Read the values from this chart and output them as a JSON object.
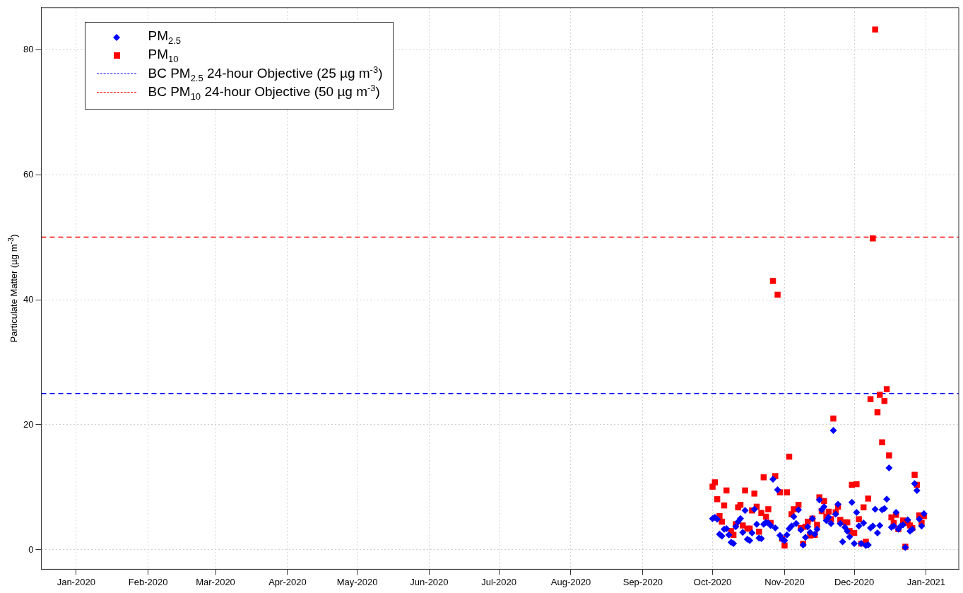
{
  "chart_data": {
    "type": "scatter",
    "ylabel": "Particulate Matter (µg m$^{-3}$)",
    "xlim": [
      "2019-12-17",
      "2021-01-15"
    ],
    "ylim": [
      -3.1,
      86.7
    ],
    "xticks": [
      {
        "value": "2020-01-01",
        "label": "Jan-2020"
      },
      {
        "value": "2020-02-01",
        "label": "Feb-2020"
      },
      {
        "value": "2020-03-01",
        "label": "Mar-2020"
      },
      {
        "value": "2020-04-01",
        "label": "Apr-2020"
      },
      {
        "value": "2020-05-01",
        "label": "May-2020"
      },
      {
        "value": "2020-06-01",
        "label": "Jun-2020"
      },
      {
        "value": "2020-07-01",
        "label": "Jul-2020"
      },
      {
        "value": "2020-08-01",
        "label": "Aug-2020"
      },
      {
        "value": "2020-09-01",
        "label": "Sep-2020"
      },
      {
        "value": "2020-10-01",
        "label": "Oct-2020"
      },
      {
        "value": "2020-11-01",
        "label": "Nov-2020"
      },
      {
        "value": "2020-12-01",
        "label": "Dec-2020"
      },
      {
        "value": "2021-01-01",
        "label": "Jan-2021"
      }
    ],
    "yticks": [
      0,
      20,
      40,
      60,
      80
    ],
    "grid": true,
    "legend": "top left",
    "series": [
      {
        "name": "PM$_{2.5}$",
        "color": "#0000ff",
        "marker": "diamond",
        "x": [
          "2020-10-01",
          "2020-10-02",
          "2020-10-03",
          "2020-10-04",
          "2020-10-05",
          "2020-10-06",
          "2020-10-07",
          "2020-10-08",
          "2020-10-09",
          "2020-10-10",
          "2020-10-11",
          "2020-10-12",
          "2020-10-13",
          "2020-10-14",
          "2020-10-15",
          "2020-10-16",
          "2020-10-17",
          "2020-10-18",
          "2020-10-19",
          "2020-10-20",
          "2020-10-21",
          "2020-10-22",
          "2020-10-23",
          "2020-10-24",
          "2020-10-25",
          "2020-10-26",
          "2020-10-27",
          "2020-10-28",
          "2020-10-29",
          "2020-10-30",
          "2020-10-31",
          "2020-11-01",
          "2020-11-02",
          "2020-11-03",
          "2020-11-04",
          "2020-11-05",
          "2020-11-06",
          "2020-11-07",
          "2020-11-08",
          "2020-11-09",
          "2020-11-10",
          "2020-11-11",
          "2020-11-12",
          "2020-11-13",
          "2020-11-14",
          "2020-11-15",
          "2020-11-16",
          "2020-11-17",
          "2020-11-18",
          "2020-11-19",
          "2020-11-20",
          "2020-11-21",
          "2020-11-22",
          "2020-11-23",
          "2020-11-24",
          "2020-11-25",
          "2020-11-26",
          "2020-11-27",
          "2020-11-28",
          "2020-11-29",
          "2020-11-30",
          "2020-12-01",
          "2020-12-02",
          "2020-12-03",
          "2020-12-04",
          "2020-12-05",
          "2020-12-06",
          "2020-12-07",
          "2020-12-08",
          "2020-12-09",
          "2020-12-10",
          "2020-12-11",
          "2020-12-12",
          "2020-12-13",
          "2020-12-14",
          "2020-12-15",
          "2020-12-16",
          "2020-12-17",
          "2020-12-18",
          "2020-12-19",
          "2020-12-20",
          "2020-12-21",
          "2020-12-22",
          "2020-12-23",
          "2020-12-24",
          "2020-12-25",
          "2020-12-26",
          "2020-12-27",
          "2020-12-28",
          "2020-12-29",
          "2020-12-30",
          "2020-12-31"
        ],
        "values": [
          5.0,
          5.2,
          4.9,
          2.5,
          2.2,
          3.3,
          3.4,
          2.4,
          1.2,
          1.0,
          3.7,
          4.5,
          5.0,
          2.8,
          6.3,
          1.7,
          1.5,
          2.7,
          6.5,
          4.1,
          1.9,
          1.8,
          4.1,
          4.4,
          4.3,
          3.9,
          11.3,
          3.5,
          9.6,
          2.3,
          1.7,
          1.5,
          2.4,
          3.4,
          3.8,
          5.3,
          4.2,
          6.4,
          3.2,
          0.8,
          2.0,
          3.7,
          2.8,
          5.0,
          2.5,
          3.3,
          8.0,
          6.4,
          6.9,
          4.7,
          5.2,
          4.2,
          19.1,
          5.7,
          7.3,
          4.2,
          1.3,
          3.6,
          3.0,
          2.1,
          7.6,
          1.0,
          6.0,
          3.8,
          1.0,
          4.3,
          0.7,
          0.8,
          3.5,
          3.8,
          6.5,
          2.7,
          3.9,
          6.4,
          6.6,
          8.1,
          13.1,
          3.6,
          3.8,
          6.0,
          3.3,
          3.8,
          4.0,
          0.4,
          4.8,
          3.0,
          3.3,
          10.6,
          9.5,
          4.9,
          3.8,
          5.8
        ]
      },
      {
        "name": "PM$_{10}$",
        "color": "#ff0000",
        "marker": "square",
        "x": [
          "2020-10-01",
          "2020-10-02",
          "2020-10-03",
          "2020-10-04",
          "2020-10-05",
          "2020-10-06",
          "2020-10-07",
          "2020-10-09",
          "2020-10-10",
          "2020-10-11",
          "2020-10-12",
          "2020-10-13",
          "2020-10-14",
          "2020-10-15",
          "2020-10-16",
          "2020-10-17",
          "2020-10-18",
          "2020-10-19",
          "2020-10-20",
          "2020-10-21",
          "2020-10-22",
          "2020-10-23",
          "2020-10-24",
          "2020-10-25",
          "2020-10-26",
          "2020-10-27",
          "2020-10-28",
          "2020-10-29",
          "2020-10-30",
          "2020-10-31",
          "2020-11-01",
          "2020-11-02",
          "2020-11-03",
          "2020-11-04",
          "2020-11-05",
          "2020-11-07",
          "2020-11-08",
          "2020-11-09",
          "2020-11-10",
          "2020-11-11",
          "2020-11-12",
          "2020-11-13",
          "2020-11-14",
          "2020-11-15",
          "2020-11-16",
          "2020-11-17",
          "2020-11-18",
          "2020-11-19",
          "2020-11-20",
          "2020-11-21",
          "2020-11-22",
          "2020-11-23",
          "2020-11-24",
          "2020-11-25",
          "2020-11-27",
          "2020-11-28",
          "2020-11-29",
          "2020-11-30",
          "2020-12-01",
          "2020-12-02",
          "2020-12-03",
          "2020-12-04",
          "2020-12-05",
          "2020-12-06",
          "2020-12-07",
          "2020-12-08",
          "2020-12-09",
          "2020-12-10",
          "2020-12-11",
          "2020-12-12",
          "2020-12-13",
          "2020-12-14",
          "2020-12-15",
          "2020-12-16",
          "2020-12-17",
          "2020-12-18",
          "2020-12-19",
          "2020-12-20",
          "2020-12-22",
          "2020-12-23",
          "2020-12-24",
          "2020-12-25",
          "2020-12-26",
          "2020-12-27",
          "2020-12-28",
          "2020-12-29",
          "2020-12-30",
          "2020-12-31"
        ],
        "values": [
          10.1,
          10.8,
          8.1,
          5.4,
          4.5,
          7.1,
          9.5,
          3.0,
          2.4,
          4.1,
          6.8,
          7.2,
          3.9,
          9.5,
          3.4,
          3.4,
          6.3,
          9.0,
          6.9,
          2.9,
          5.9,
          11.6,
          5.3,
          6.5,
          4.3,
          43.0,
          11.8,
          40.8,
          9.2,
          1.8,
          0.7,
          9.2,
          14.9,
          5.7,
          6.5,
          7.2,
          3.5,
          1.0,
          3.7,
          4.5,
          2.3,
          5.0,
          2.4,
          4.0,
          8.4,
          6.2,
          7.8,
          5.3,
          6.1,
          4.9,
          21.0,
          6.0,
          6.9,
          4.8,
          4.4,
          4.4,
          3.0,
          10.4,
          2.7,
          10.5,
          4.9,
          1.0,
          6.8,
          1.3,
          8.2,
          24.1,
          49.8,
          83.2,
          22.0,
          24.8,
          17.2,
          23.8,
          25.7,
          15.1,
          5.2,
          4.3,
          5.6,
          3.3,
          4.7,
          0.5,
          4.3,
          3.9,
          3.5,
          12.0,
          10.4,
          5.5,
          4.3,
          5.4
        ]
      }
    ],
    "ref_lines": [
      {
        "axis": "y",
        "value": 25,
        "label": "BC PM$_{2.5}$ 24-hour Objective (25 µg m$^{-3}$)",
        "color": "#0000ff",
        "line_style": "dashed"
      },
      {
        "axis": "y",
        "value": 50,
        "label": "BC PM$_{10}$ 24-hour Objective (50 µg m$^{-3}$)",
        "color": "#ff0000",
        "line_style": "dashed"
      }
    ]
  }
}
